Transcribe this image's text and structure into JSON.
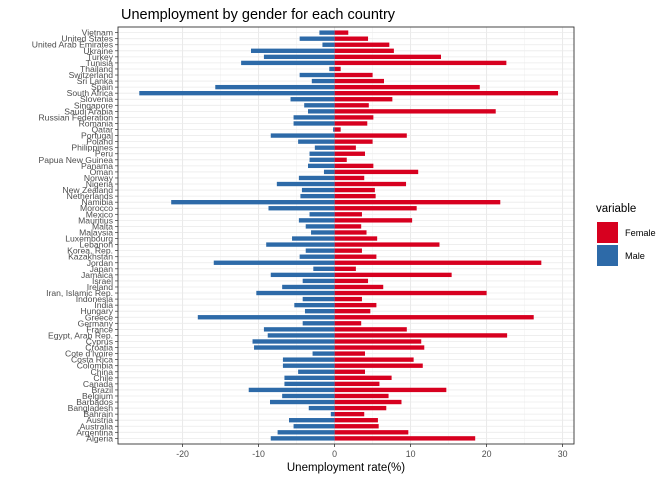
{
  "chart_data": {
    "type": "bar",
    "orientation": "horizontal",
    "title": "Unemployment by gender for each country",
    "xlabel": "Unemployment rate(%)",
    "ylabel": "",
    "xlim": [
      -28.5,
      31.5
    ],
    "xticks": [
      -20,
      -10,
      0,
      10,
      20,
      30
    ],
    "xtick_labels": [
      "-20",
      "-10",
      "0",
      "10",
      "20",
      "30"
    ],
    "grid": true,
    "legend": {
      "title": "variable",
      "position": "right",
      "entries": [
        {
          "label": "Female",
          "color": "#d7001f"
        },
        {
          "label": "Male",
          "color": "#2d6aa8"
        }
      ]
    },
    "categories": [
      "Vietnam",
      "United States",
      "United Arab Emirates",
      "Ukraine",
      "Turkey",
      "Tunisia",
      "Thailand",
      "Switzerland",
      "Sri Lanka",
      "Spain",
      "South Africa",
      "Slovenia",
      "Singapore",
      "Saudi Arabia",
      "Russian Federation",
      "Romania",
      "Qatar",
      "Portugal",
      "Poland",
      "Philippines",
      "Peru",
      "Papua New Guinea",
      "Panama",
      "Oman",
      "Norway",
      "Nigeria",
      "New Zealand",
      "Netherlands",
      "Namibia",
      "Morocco",
      "Mexico",
      "Mauritius",
      "Malta",
      "Malaysia",
      "Luxembourg",
      "Lebanon",
      "Korea, Rep.",
      "Kazakhstan",
      "Jordan",
      "Japan",
      "Jamaica",
      "Israel",
      "Ireland",
      "Iran, Islamic Rep.",
      "Indonesia",
      "India",
      "Hungary",
      "Greece",
      "Germany",
      "France",
      "Egypt, Arab Rep.",
      "Cyprus",
      "Croatia",
      "Cote d'Ivoire",
      "Costa Rica",
      "Colombia",
      "China",
      "Chile",
      "Canada",
      "Brazil",
      "Belgium",
      "Barbados",
      "Bangladesh",
      "Bahrain",
      "Austria",
      "Australia",
      "Argentina",
      "Algeria"
    ],
    "series": [
      {
        "name": "Female",
        "values": [
          1.8,
          4.4,
          7.2,
          7.8,
          14.0,
          22.6,
          0.8,
          5.0,
          6.5,
          19.1,
          29.4,
          7.6,
          4.5,
          21.2,
          5.1,
          4.3,
          0.8,
          9.5,
          5.0,
          2.8,
          4.0,
          1.6,
          5.1,
          11.0,
          3.9,
          9.4,
          5.3,
          5.4,
          21.8,
          10.8,
          3.6,
          10.2,
          3.5,
          4.2,
          5.6,
          13.8,
          3.6,
          5.5,
          27.2,
          2.8,
          15.4,
          4.4,
          6.4,
          20.0,
          3.6,
          5.5,
          4.7,
          26.2,
          3.5,
          9.5,
          22.7,
          11.4,
          11.8,
          4.0,
          10.4,
          11.6,
          4.0,
          7.5,
          5.9,
          14.7,
          7.1,
          8.8,
          6.8,
          3.9,
          5.7,
          5.8,
          9.7,
          18.5
        ]
      },
      {
        "name": "Male",
        "values": [
          -2.0,
          -4.6,
          -1.6,
          -11.0,
          -9.3,
          -12.3,
          -0.7,
          -4.6,
          -3.0,
          -15.7,
          -25.7,
          -5.8,
          -4.0,
          -3.5,
          -5.4,
          -5.4,
          -0.2,
          -8.4,
          -4.8,
          -2.6,
          -3.3,
          -3.3,
          -3.5,
          -1.4,
          -4.7,
          -7.6,
          -4.3,
          -4.5,
          -21.5,
          -8.7,
          -3.3,
          -4.7,
          -3.8,
          -3.1,
          -5.6,
          -9.0,
          -3.8,
          -4.6,
          -15.9,
          -2.8,
          -8.4,
          -4.2,
          -6.9,
          -10.3,
          -4.2,
          -5.3,
          -3.9,
          -18.0,
          -4.2,
          -9.3,
          -8.8,
          -10.8,
          -10.6,
          -2.9,
          -6.8,
          -6.8,
          -4.8,
          -6.6,
          -6.6,
          -11.3,
          -6.9,
          -8.5,
          -3.4,
          -0.5,
          -6.0,
          -5.4,
          -7.5,
          -8.4
        ]
      }
    ]
  }
}
